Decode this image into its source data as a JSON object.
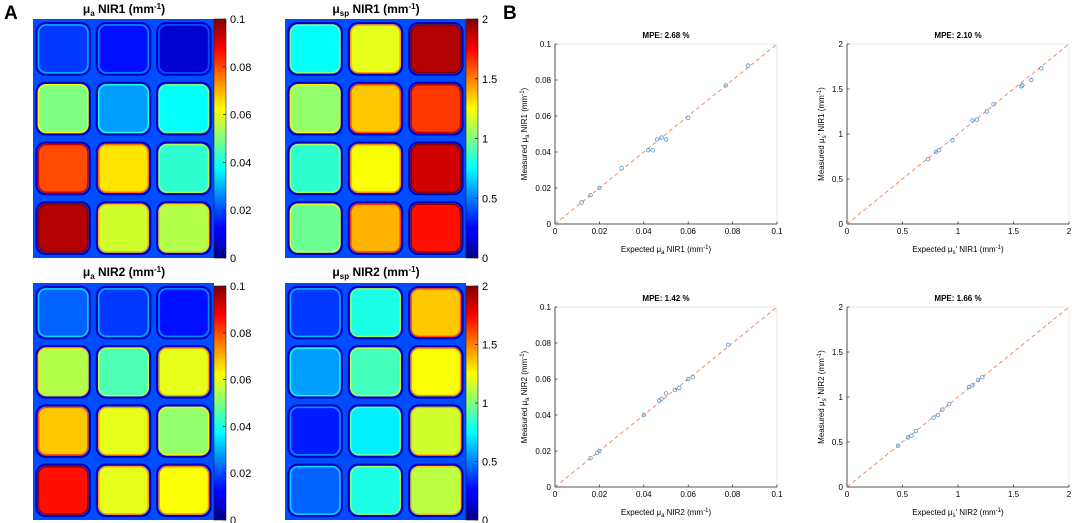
{
  "panel_labels": {
    "a": "A",
    "b": "B"
  },
  "colors": {
    "scatter": "#4a9ad8",
    "identity": "#f08a66",
    "axis": "#262626"
  },
  "maps": [
    {
      "title_main": "μ",
      "title_sub": "a",
      "title_rest": " NIR1 (mm",
      "title_sup": "-1",
      "title_end": ")",
      "ticks": [
        "0.1",
        "0.08",
        "0.06",
        "0.04",
        "0.02",
        "0"
      ],
      "grid": [
        [
          0.18,
          0.14,
          0.08
        ],
        [
          0.5,
          0.28,
          0.38
        ],
        [
          0.8,
          0.65,
          0.42
        ],
        [
          0.95,
          0.58,
          0.55
        ]
      ]
    },
    {
      "title_main": "μ",
      "title_sub": "sp",
      "title_rest": " NIR1 (mm",
      "title_sup": "-1",
      "title_end": ")",
      "ticks": [
        "2",
        "1.5",
        "1",
        "0.5",
        "0"
      ],
      "grid": [
        [
          0.38,
          0.6,
          0.95
        ],
        [
          0.52,
          0.68,
          0.82
        ],
        [
          0.42,
          0.62,
          0.92
        ],
        [
          0.48,
          0.7,
          0.86
        ]
      ]
    },
    {
      "title_main": "μ",
      "title_sub": "a",
      "title_rest": " NIR2 (mm",
      "title_sup": "-1",
      "title_end": ")",
      "ticks": [
        "0.1",
        "0.08",
        "0.06",
        "0.04",
        "0.02",
        "0"
      ],
      "grid": [
        [
          0.22,
          0.18,
          0.14
        ],
        [
          0.55,
          0.45,
          0.6
        ],
        [
          0.68,
          0.6,
          0.52
        ],
        [
          0.86,
          0.6,
          0.62
        ]
      ]
    },
    {
      "title_main": "μ",
      "title_sub": "sp",
      "title_rest": " NIR2 (mm",
      "title_sup": "-1",
      "title_end": ")",
      "ticks": [
        "2",
        "1.5",
        "1",
        "0.5",
        "0"
      ],
      "grid": [
        [
          0.18,
          0.4,
          0.68
        ],
        [
          0.28,
          0.44,
          0.62
        ],
        [
          0.15,
          0.36,
          0.58
        ],
        [
          0.22,
          0.4,
          0.56
        ]
      ]
    }
  ],
  "chart_data": [
    {
      "type": "scatter",
      "title": "MPE: 2.68 %",
      "xlabel": "Expected μa NIR1 (mm-1)",
      "xlabel_main": "Expected μ",
      "xlabel_sub": "a",
      "xlabel_rest": " NIR1 (mm",
      "xlabel_sup": "-1",
      "xlabel_end": ")",
      "ylabel": "Measured μa NIR1 (mm-1)",
      "ylabel_main": "Measured μ",
      "ylabel_sub": "a",
      "ylabel_rest": " NIR1 (mm",
      "ylabel_sup": "-1",
      "ylabel_end": ")",
      "xlim": [
        0,
        0.1
      ],
      "ylim": [
        0,
        0.1
      ],
      "xticks": [
        0,
        0.02,
        0.04,
        0.06,
        0.08,
        0.1
      ],
      "xtick_labels": [
        "0",
        "0.02",
        "0.04",
        "0.06",
        "0.08",
        "0.1"
      ],
      "yticks": [
        0,
        0.02,
        0.04,
        0.06,
        0.08,
        0.1
      ],
      "ytick_labels": [
        "0",
        "0.02",
        "0.04",
        "0.06",
        "0.08",
        "0.1"
      ],
      "x": [
        0.012,
        0.016,
        0.02,
        0.03,
        0.042,
        0.044,
        0.046,
        0.048,
        0.05,
        0.06,
        0.077,
        0.087
      ],
      "y": [
        0.012,
        0.016,
        0.02,
        0.031,
        0.041,
        0.041,
        0.047,
        0.048,
        0.047,
        0.059,
        0.077,
        0.088
      ]
    },
    {
      "type": "scatter",
      "title": "MPE: 2.10 %",
      "xlabel": "Expected μs' NIR1 (mm-1)",
      "xlabel_main": "Expected μ",
      "xlabel_sub": "s",
      "xlabel_rest": "' NIR1 (mm",
      "xlabel_sup": "-1",
      "xlabel_end": ")",
      "ylabel": "Measured μs' NIR1 (mm-1)",
      "ylabel_main": "Measured μ",
      "ylabel_sub": "s",
      "ylabel_rest": "' NIR1 (mm",
      "ylabel_sup": "-1",
      "ylabel_end": ")",
      "xlim": [
        0,
        2
      ],
      "ylim": [
        0,
        2
      ],
      "xticks": [
        0,
        0.5,
        1,
        1.5,
        2
      ],
      "xtick_labels": [
        "0",
        "0.5",
        "1",
        "1.5",
        "2"
      ],
      "yticks": [
        0,
        0.5,
        1,
        1.5,
        2
      ],
      "ytick_labels": [
        "0",
        "0.5",
        "1",
        "1.5",
        "2"
      ],
      "x": [
        0.73,
        0.8,
        0.83,
        0.95,
        1.13,
        1.17,
        1.26,
        1.32,
        1.57,
        1.58,
        1.66,
        1.75
      ],
      "y": [
        0.72,
        0.8,
        0.82,
        0.93,
        1.15,
        1.16,
        1.25,
        1.33,
        1.53,
        1.54,
        1.6,
        1.73
      ]
    },
    {
      "type": "scatter",
      "title": "MPE: 1.42 %",
      "xlabel": "Expected μa NIR2 (mm-1)",
      "xlabel_main": "Expected μ",
      "xlabel_sub": "a",
      "xlabel_rest": " NIR2 (mm",
      "xlabel_sup": "-1",
      "xlabel_end": ")",
      "ylabel": "Measured μa NIR2 (mm-1)",
      "ylabel_main": "Measured μ",
      "ylabel_sub": "a",
      "ylabel_rest": " NIR2 (mm",
      "ylabel_sup": "-1",
      "ylabel_end": ")",
      "xlim": [
        0,
        0.1
      ],
      "ylim": [
        0,
        0.1
      ],
      "xticks": [
        0,
        0.02,
        0.04,
        0.06,
        0.08,
        0.1
      ],
      "xtick_labels": [
        "0",
        "0.02",
        "0.04",
        "0.06",
        "0.08",
        "0.1"
      ],
      "yticks": [
        0,
        0.02,
        0.04,
        0.06,
        0.08,
        0.1
      ],
      "ytick_labels": [
        "0",
        "0.02",
        "0.04",
        "0.06",
        "0.08",
        "0.1"
      ],
      "x": [
        0.016,
        0.019,
        0.02,
        0.04,
        0.047,
        0.048,
        0.05,
        0.054,
        0.056,
        0.06,
        0.062,
        0.078
      ],
      "y": [
        0.016,
        0.019,
        0.02,
        0.04,
        0.048,
        0.049,
        0.052,
        0.054,
        0.055,
        0.06,
        0.061,
        0.079
      ]
    },
    {
      "type": "scatter",
      "title": "MPE: 1.66 %",
      "xlabel": "Expected μs' NIR2 (mm-1)",
      "xlabel_main": "Expected μ",
      "xlabel_sub": "s",
      "xlabel_rest": "' NIR2 (mm",
      "xlabel_sup": "-1",
      "xlabel_end": ")",
      "ylabel": "Measured μs' NIR2 (mm-1)",
      "ylabel_main": "Measured μ",
      "ylabel_sub": "s",
      "ylabel_rest": "' NIR2 (mm",
      "ylabel_sup": "-1",
      "ylabel_end": ")",
      "xlim": [
        0,
        2
      ],
      "ylim": [
        0,
        2
      ],
      "xticks": [
        0,
        0.5,
        1,
        1.5,
        2
      ],
      "xtick_labels": [
        "0",
        "0.5",
        "1",
        "1.5",
        "2"
      ],
      "yticks": [
        0,
        0.5,
        1,
        1.5,
        2
      ],
      "ytick_labels": [
        "0",
        "0.5",
        "1",
        "1.5",
        "2"
      ],
      "x": [
        0.46,
        0.55,
        0.58,
        0.62,
        0.78,
        0.82,
        0.86,
        0.92,
        1.1,
        1.13,
        1.18,
        1.22
      ],
      "y": [
        0.46,
        0.55,
        0.57,
        0.62,
        0.77,
        0.8,
        0.86,
        0.92,
        1.11,
        1.13,
        1.19,
        1.22
      ]
    }
  ]
}
